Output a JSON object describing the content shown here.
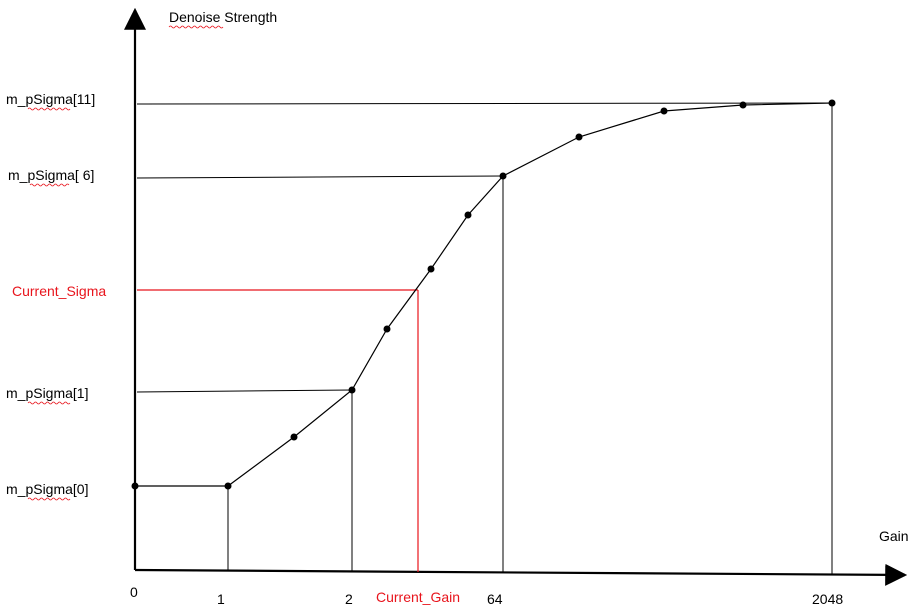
{
  "axes": {
    "ylabel": "Denoise Strength",
    "xlabel": "Gain"
  },
  "y_labels": {
    "sigma11": "m_pSigma[11]",
    "sigma6": "m_pSigma[ 6]",
    "current_sigma": "Current_Sigma",
    "sigma1": "m_pSigma[1]",
    "sigma0": "m_pSigma[0]"
  },
  "x_labels": {
    "zero": "0",
    "one": "1",
    "two": "2",
    "current_gain": "Current_Gain",
    "sixty_four": "64",
    "big": "2048"
  },
  "colors": {
    "axis": "#000000",
    "curve": "#000000",
    "highlight": "#e8141c",
    "squiggle": "#e8141c"
  }
}
